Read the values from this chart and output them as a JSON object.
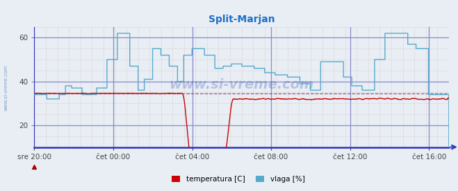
{
  "title": "Split-Marjan",
  "title_color": "#1a6fcc",
  "title_fontsize": 10,
  "fig_bg_color": "#e8eef4",
  "plot_bg_color": "#e8eef4",
  "grid_color_major": "#8888cc",
  "grid_color_minor_x": "#ccaaaa",
  "grid_color_minor_y": "#ccaaaa",
  "axis_color": "#3333bb",
  "tick_label_color": "#444444",
  "watermark": "www.si-vreme.com",
  "x_labels": [
    "sre 20:00",
    "čet 00:00",
    "čet 04:00",
    "čet 08:00",
    "čet 12:00",
    "čet 16:00"
  ],
  "x_ticks_norm": [
    0.0,
    0.1905,
    0.381,
    0.571,
    0.762,
    0.952
  ],
  "ylim": [
    10,
    65
  ],
  "y_ticks": [
    20,
    40,
    60
  ],
  "legend_labels": [
    "temperatura [C]",
    "vlaga [%]"
  ],
  "legend_colors": [
    "#cc0000",
    "#55aacc"
  ],
  "temp_color": "#cc0000",
  "vlaga_color": "#55aacc",
  "temp_avg": 34.5,
  "vlaga_avg": 34.5,
  "temp_avg_color": "#cc0000",
  "vlaga_avg_color": "#6699cc"
}
